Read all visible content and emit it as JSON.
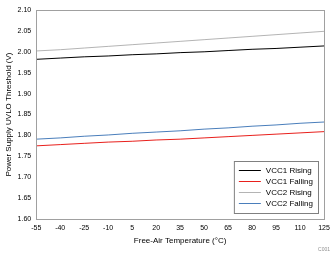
{
  "chart_data": {
    "type": "line",
    "x_label": "Free-Air Temperature (°C)",
    "y_label": "Power Supply UVLO Threshold (V)",
    "annotations": [
      "C001"
    ],
    "x": [
      -55,
      -40,
      -25,
      -10,
      5,
      20,
      35,
      50,
      65,
      80,
      95,
      110,
      125
    ],
    "series": [
      {
        "name": "VCC1 Rising",
        "color": "#000000",
        "values": [
          1.982,
          1.985,
          1.988,
          1.99,
          1.993,
          1.995,
          1.998,
          2.0,
          2.003,
          2.006,
          2.008,
          2.011,
          2.014
        ]
      },
      {
        "name": "VCC1 Falling",
        "color": "#e8201c",
        "values": [
          1.775,
          1.778,
          1.781,
          1.784,
          1.786,
          1.789,
          1.791,
          1.794,
          1.797,
          1.8,
          1.803,
          1.806,
          1.809
        ]
      },
      {
        "name": "VCC2 Rising",
        "color": "#b4b4b4",
        "values": [
          2.002,
          2.005,
          2.009,
          2.013,
          2.017,
          2.021,
          2.025,
          2.029,
          2.033,
          2.037,
          2.041,
          2.045,
          2.049
        ]
      },
      {
        "name": "VCC2 Falling",
        "color": "#4a7ebb",
        "values": [
          1.791,
          1.794,
          1.798,
          1.801,
          1.805,
          1.808,
          1.811,
          1.815,
          1.818,
          1.822,
          1.825,
          1.829,
          1.832
        ]
      }
    ],
    "xlim": [
      -55,
      125
    ],
    "xticks": [
      -55,
      -40,
      -25,
      -10,
      5,
      20,
      35,
      50,
      65,
      80,
      95,
      110,
      125
    ],
    "ylim": [
      1.6,
      2.1
    ],
    "yticks": [
      {
        "value": 1.6,
        "label": "1.60"
      },
      {
        "value": 1.65,
        "label": "1.65"
      },
      {
        "value": 1.7,
        "label": "1.70"
      },
      {
        "value": 1.75,
        "label": "1.75"
      },
      {
        "value": 1.8,
        "label": "1.80"
      },
      {
        "value": 1.85,
        "label": "1.85"
      },
      {
        "value": 1.9,
        "label": "1.90"
      },
      {
        "value": 1.95,
        "label": "1.95"
      },
      {
        "value": 2.0,
        "label": "2.00"
      },
      {
        "value": 2.05,
        "label": "2.05"
      },
      {
        "value": 2.1,
        "label": "2.10"
      }
    ],
    "grid": false,
    "legend": "lower right"
  }
}
